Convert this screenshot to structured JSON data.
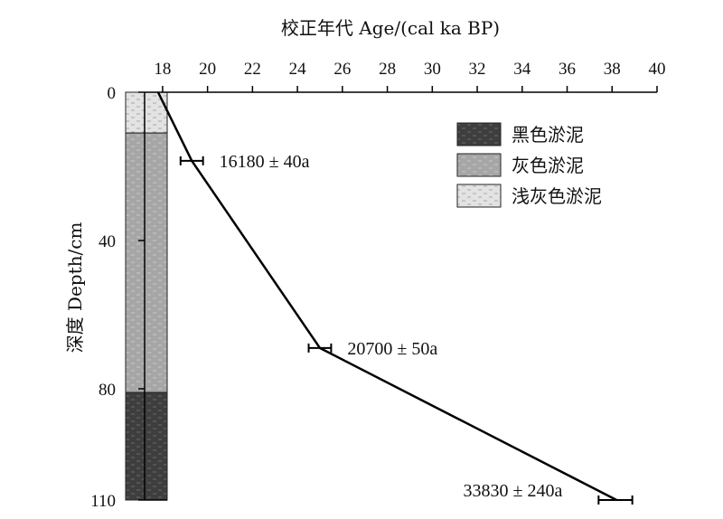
{
  "chart_data": {
    "type": "line",
    "title": "",
    "xlabel": "校正年代 Age/(cal ka BP)",
    "ylabel": "深度 Depth/cm",
    "xlim": [
      17.2,
      40
    ],
    "ylim": [
      0,
      110
    ],
    "x_ticks": [
      18,
      20,
      22,
      24,
      26,
      28,
      30,
      32,
      34,
      36,
      38,
      40
    ],
    "y_ticks": [
      0,
      40,
      80,
      110
    ],
    "x_axis_position": "top",
    "y_axis_reversed": true,
    "grid": false,
    "legend_position": "top-right",
    "series": [
      {
        "points": [
          {
            "age": 17.8,
            "depth": 0
          },
          {
            "age": 19.3,
            "depth": 18.5
          },
          {
            "age": 25.0,
            "depth": 69
          },
          {
            "age": 38.2,
            "depth": 110
          }
        ],
        "color": "#000000"
      }
    ],
    "dated_samples": [
      {
        "age": 19.3,
        "depth": 18.5,
        "error_low": 18.8,
        "error_high": 19.8,
        "label": "16180 ± 40a"
      },
      {
        "age": 25.0,
        "depth": 69,
        "error_low": 24.5,
        "error_high": 25.5,
        "label": "20700 ± 50a"
      },
      {
        "age": 38.2,
        "depth": 110,
        "error_low": 37.4,
        "error_high": 38.9,
        "label": "33830 ± 240a"
      }
    ],
    "lithology": [
      {
        "name": "浅灰色淤泥",
        "top": 0,
        "bottom": 11,
        "color": "#e3e3e3",
        "dash": "#a8a8a8"
      },
      {
        "name": "灰色淤泥",
        "top": 11,
        "bottom": 81,
        "color": "#a6a6a6",
        "dash": "#c8c8c8"
      },
      {
        "name": "黑色淤泥",
        "top": 81,
        "bottom": 110,
        "color": "#3e3e3e",
        "dash": "#6a6a6a"
      }
    ],
    "legend": [
      {
        "label": "黑色淤泥",
        "color": "#3e3e3e",
        "dash": "#6a6a6a"
      },
      {
        "label": "灰色淤泥",
        "color": "#a6a6a6",
        "dash": "#c8c8c8"
      },
      {
        "label": "浅灰色淤泥",
        "color": "#e3e3e3",
        "dash": "#a8a8a8"
      }
    ]
  }
}
